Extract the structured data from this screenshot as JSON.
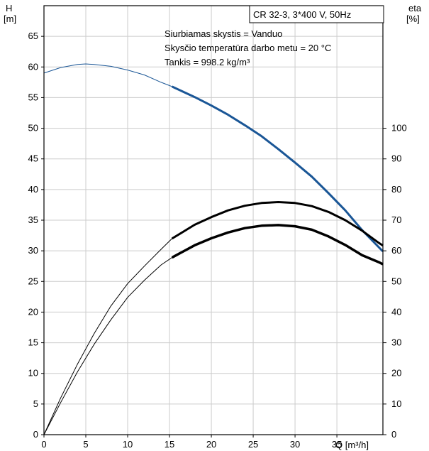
{
  "chart_data": {
    "type": "line",
    "title_box": "CR 32-3, 3*400 V, 50Hz",
    "annotations": [
      "Siurbiamas skystis = Vanduo",
      "Skysčio temperatūra darbo metu = 20 °C",
      "Tankis = 998.2 kg/m³"
    ],
    "xlabel": "Q [m³/h]",
    "ylabel_left": [
      "H",
      "[m]"
    ],
    "ylabel_right": [
      "eta",
      "[%]"
    ],
    "xlim": [
      0,
      40.5
    ],
    "ylim_left": [
      0,
      70
    ],
    "ylim_right": [
      0,
      140
    ],
    "xticks": [
      0,
      5,
      10,
      15,
      20,
      25,
      30,
      35
    ],
    "yticks_left": [
      0,
      5,
      10,
      15,
      20,
      25,
      30,
      35,
      40,
      45,
      50,
      55,
      60,
      65
    ],
    "yticks_right": [
      0,
      10,
      20,
      30,
      40,
      50,
      60,
      70,
      80,
      90,
      100
    ],
    "grid": true,
    "colors": {
      "head": "#1a5696",
      "eta": "#000000",
      "grid": "#cccccc"
    },
    "series": [
      {
        "axis": "left",
        "color": "#1a5696",
        "x": [
          0,
          2,
          4,
          5,
          6,
          8,
          10,
          12,
          14,
          15.3,
          18,
          20,
          22,
          24,
          26,
          28,
          30,
          32,
          34,
          36,
          38,
          40,
          40.5
        ],
        "y": [
          59,
          59.9,
          60.4,
          60.5,
          60.4,
          60.1,
          59.5,
          58.7,
          57.5,
          56.8,
          55.1,
          53.7,
          52.2,
          50.5,
          48.7,
          46.6,
          44.4,
          42.1,
          39.4,
          36.6,
          33.4,
          30.6,
          29.9
        ]
      },
      {
        "axis": "right",
        "color": "#000000",
        "x": [
          0,
          2,
          4,
          6,
          8,
          10,
          12,
          14,
          15.3,
          18,
          20,
          22,
          24,
          26,
          28,
          30,
          32,
          34,
          36,
          38,
          40,
          40.5
        ],
        "y": [
          0,
          12,
          23,
          33,
          42,
          49.3,
          55,
          60.5,
          64,
          68.5,
          71,
          73.2,
          74.7,
          75.6,
          75.9,
          75.6,
          74.6,
          72.7,
          70,
          66.6,
          62.6,
          61.7
        ]
      },
      {
        "axis": "right",
        "color": "#000000",
        "x": [
          0,
          2,
          4,
          6,
          8,
          10,
          12,
          14,
          15.3,
          18,
          20,
          22,
          24,
          26,
          28,
          30,
          32,
          34,
          36,
          38,
          40,
          40.5
        ],
        "y": [
          0,
          10.5,
          20.5,
          29.5,
          37.5,
          44.8,
          50.4,
          55.4,
          57.8,
          61.8,
          64.1,
          66,
          67.4,
          68.2,
          68.4,
          68,
          66.9,
          64.7,
          61.9,
          58.6,
          56.3,
          55.6
        ]
      }
    ]
  }
}
